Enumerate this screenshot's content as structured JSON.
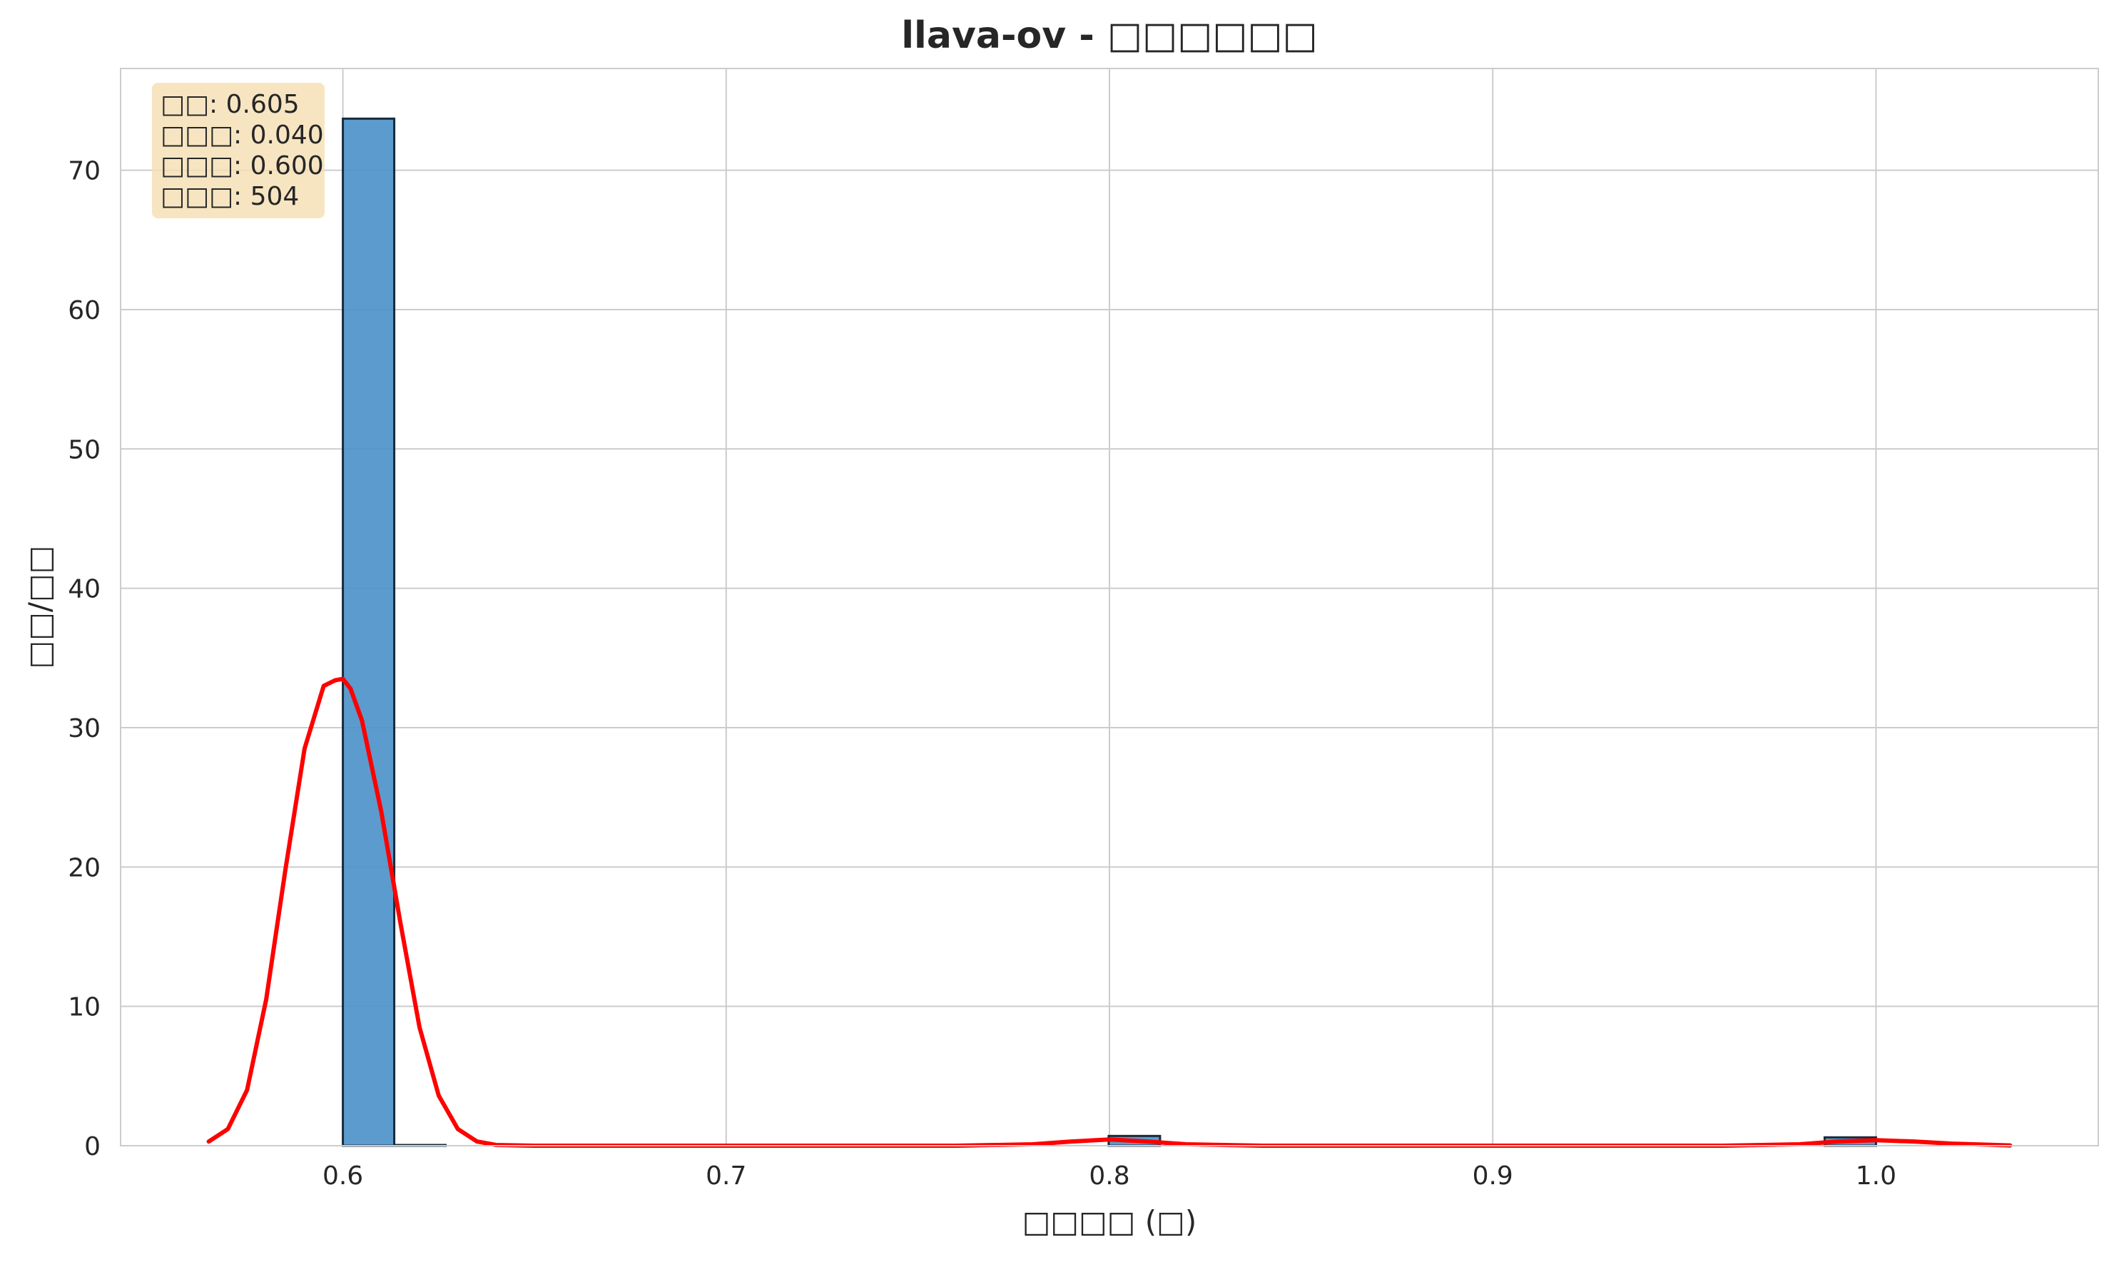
{
  "chart_data": {
    "type": "bar",
    "title": "llava-ov - □□□□□□",
    "xlabel": "□□□□ (□)",
    "ylabel": "□□/□□",
    "xlim": [
      0.542,
      1.058
    ],
    "ylim": [
      0,
      77.3
    ],
    "xticks": [
      0.6,
      0.7,
      0.8,
      0.9,
      1.0
    ],
    "xtick_labels": [
      "0.6",
      "0.7",
      "0.8",
      "0.9",
      "1.0"
    ],
    "yticks": [
      0,
      10,
      20,
      30,
      40,
      50,
      60,
      70
    ],
    "ytick_labels": [
      "0",
      "10",
      "20",
      "30",
      "40",
      "50",
      "60",
      "70"
    ],
    "grid": true,
    "bars": [
      {
        "x0": 0.6,
        "x1": 0.6134,
        "value": 73.7
      },
      {
        "x0": 0.6134,
        "x1": 0.6268,
        "value": 0.0
      },
      {
        "x0": 0.7998,
        "x1": 0.8132,
        "value": 0.7
      },
      {
        "x0": 0.9866,
        "x1": 1.0,
        "value": 0.6
      }
    ],
    "bar_color": "#4a90c8",
    "kde_color": "#ff0000",
    "kde": {
      "x": [
        0.565,
        0.57,
        0.575,
        0.58,
        0.585,
        0.59,
        0.595,
        0.598,
        0.6,
        0.602,
        0.605,
        0.61,
        0.615,
        0.62,
        0.625,
        0.63,
        0.635,
        0.64,
        0.65,
        0.7,
        0.76,
        0.78,
        0.79,
        0.8,
        0.81,
        0.82,
        0.84,
        0.9,
        0.96,
        0.98,
        0.99,
        1.0,
        1.01,
        1.02,
        1.035
      ],
      "y": [
        0.3,
        1.2,
        4.0,
        10.5,
        19.8,
        28.5,
        33.0,
        33.4,
        33.5,
        32.8,
        30.5,
        24.0,
        16.0,
        8.5,
        3.6,
        1.2,
        0.3,
        0.05,
        0.0,
        0.0,
        0.0,
        0.1,
        0.3,
        0.45,
        0.3,
        0.1,
        0.0,
        0.0,
        0.0,
        0.1,
        0.3,
        0.4,
        0.3,
        0.15,
        0.02
      ]
    },
    "stats_box": [
      "□□: 0.605",
      "□□□: 0.040",
      "□□□: 0.600",
      "□□□: 504"
    ]
  }
}
